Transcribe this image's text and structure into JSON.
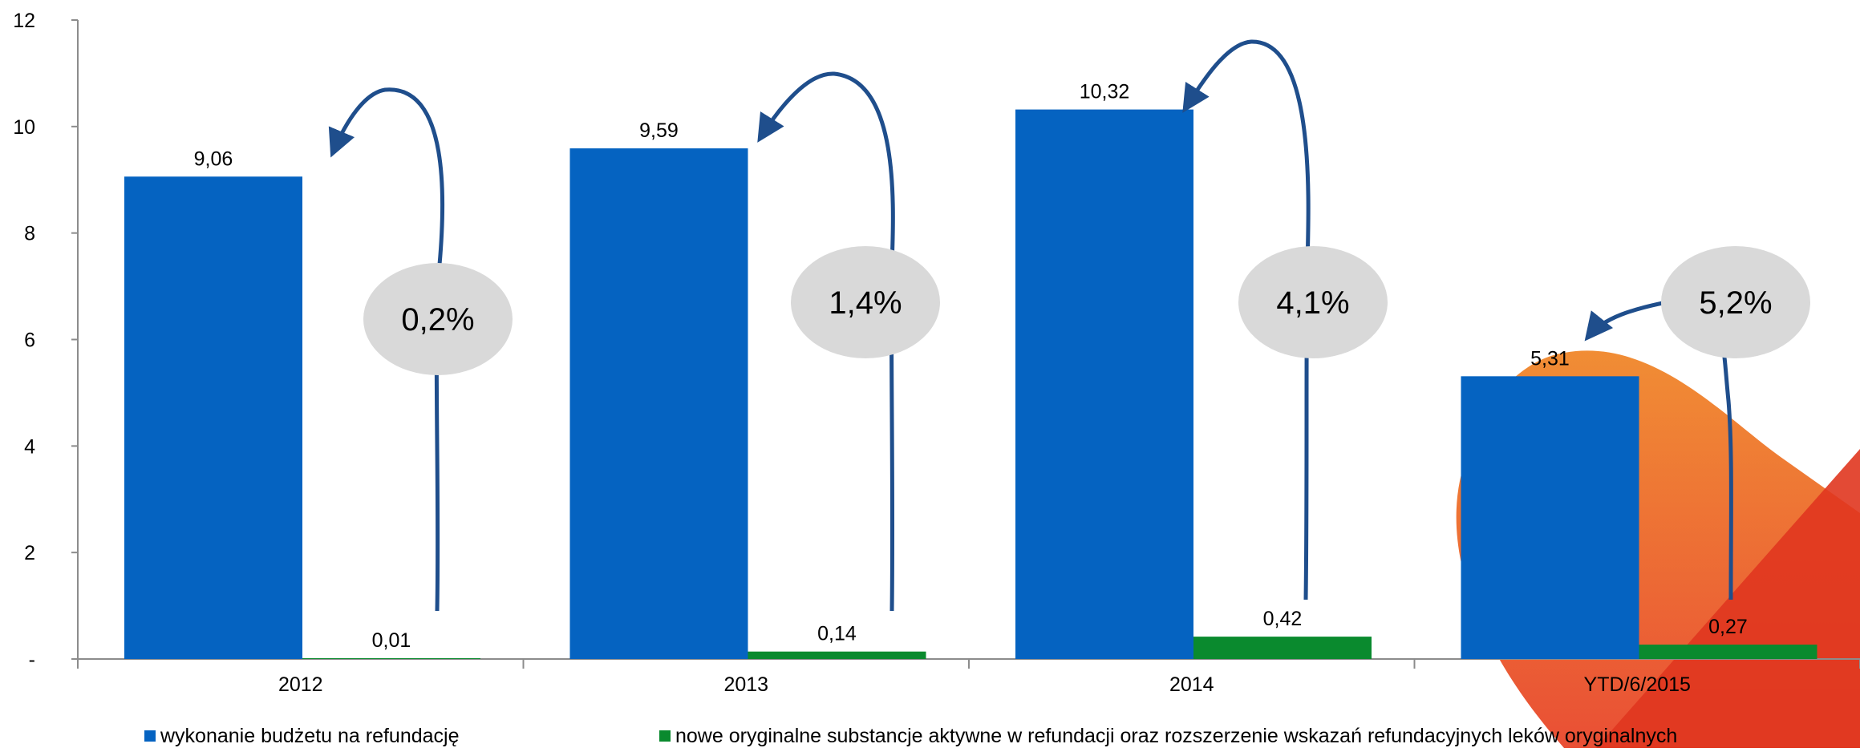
{
  "chart_data": {
    "type": "bar",
    "categories": [
      "2012",
      "2013",
      "2014",
      "YTD/6/2015"
    ],
    "series": [
      {
        "name": "wykonanie budżetu na refundację",
        "values": [
          9.06,
          9.59,
          10.32,
          5.31
        ],
        "labels": [
          "9,06",
          "9,59",
          "10,32",
          "5,31"
        ],
        "color": "#0563c1"
      },
      {
        "name": "nowe oryginalne substancje aktywne w refundacji oraz rozszerzenie wskazań refundacyjnych leków oryginalnych",
        "values": [
          0.01,
          0.14,
          0.42,
          0.27
        ],
        "labels": [
          "0,01",
          "0,14",
          "0,42",
          "0,27"
        ],
        "color": "#0a8a2e"
      }
    ],
    "ylim": [
      0,
      12
    ],
    "yticks": [
      0,
      2,
      4,
      6,
      8,
      10,
      12
    ],
    "ytick_labels": [
      "-",
      "2",
      "4",
      "6",
      "8",
      "10",
      "12"
    ],
    "annotations": [
      "0,2%",
      "1,4%",
      "4,1%",
      "5,2%"
    ],
    "annotation_color": "#d9d9d9",
    "arrow_color": "#1f4e8c",
    "legend_position": "bottom",
    "grid": false
  }
}
